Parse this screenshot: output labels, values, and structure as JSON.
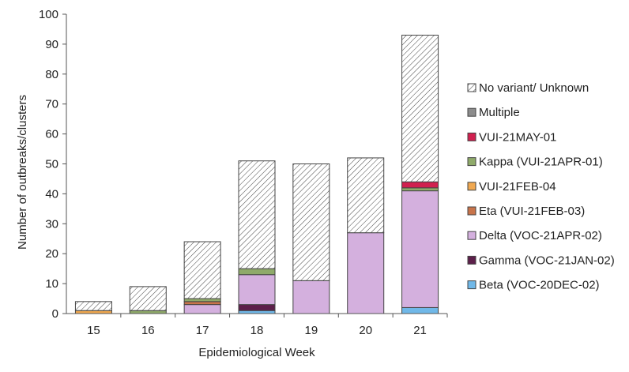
{
  "chart_data": {
    "type": "bar",
    "stacked": true,
    "xlabel": "Epidemiological Week",
    "ylabel": "Number of outbreaks/clusters",
    "ylim": [
      0,
      100
    ],
    "yticks": [
      0,
      10,
      20,
      30,
      40,
      50,
      60,
      70,
      80,
      90,
      100
    ],
    "grid": false,
    "legend_position": "right",
    "categories": [
      "15",
      "16",
      "17",
      "18",
      "19",
      "20",
      "21"
    ],
    "series": [
      {
        "name": "Beta (VOC-20DEC-02)",
        "color": "#70B8E8",
        "values": [
          0,
          0,
          0,
          1,
          0,
          0,
          2
        ]
      },
      {
        "name": "Gamma (VOC-21JAN-02)",
        "color": "#5C1F4A",
        "values": [
          0,
          0,
          0,
          2,
          0,
          0,
          0
        ]
      },
      {
        "name": "Delta (VOC-21APR-02)",
        "color": "#D4B0DE",
        "values": [
          0,
          0,
          3,
          10,
          11,
          27,
          39
        ]
      },
      {
        "name": "Eta (VUI-21FEB-03)",
        "color": "#C8744A",
        "values": [
          0,
          0,
          1,
          0,
          0,
          0,
          0
        ]
      },
      {
        "name": "VUI-21FEB-04",
        "color": "#F0A850",
        "values": [
          1,
          0,
          0,
          0,
          0,
          0,
          0
        ]
      },
      {
        "name": "Kappa (VUI-21APR-01)",
        "color": "#8FAA6A",
        "values": [
          0,
          1,
          1,
          2,
          0,
          0,
          1
        ]
      },
      {
        "name": "VUI-21MAY-01",
        "color": "#D0204F",
        "values": [
          0,
          0,
          0,
          0,
          0,
          0,
          2
        ]
      },
      {
        "name": "Multiple",
        "color": "#8C8C8C",
        "values": [
          0,
          0,
          0,
          0,
          0,
          0,
          0
        ]
      },
      {
        "name": "No variant/ Unknown",
        "color": "hatched",
        "values": [
          3,
          8,
          19,
          36,
          39,
          25,
          49
        ]
      }
    ]
  }
}
